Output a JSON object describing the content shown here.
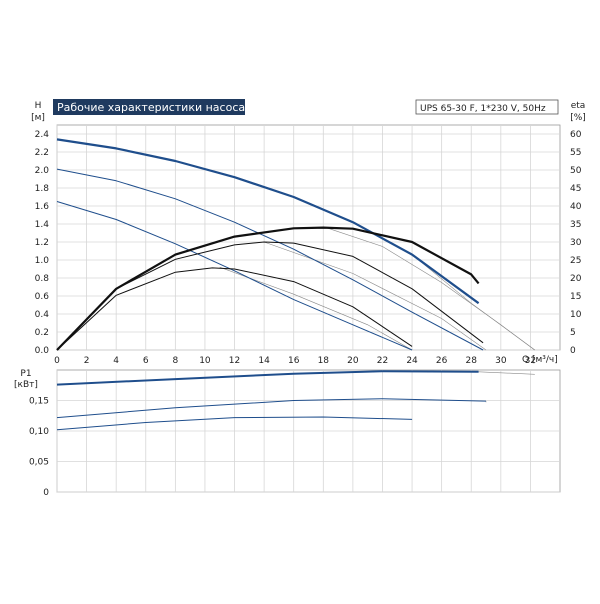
{
  "chart_data": [
    {
      "type": "line",
      "title": "Рабочие характеристики насоса",
      "model_label": "UPS 65-30 F, 1*230 V, 50Hz",
      "ylabel": "H",
      "yunit": "[м]",
      "y2label": "eta",
      "y2unit": "[%]",
      "xlabel": "Q [м³/ч]",
      "xlim": [
        0,
        34
      ],
      "ylim": [
        0,
        2.5
      ],
      "y2lim": [
        0,
        62.5
      ],
      "xticks": [
        "0",
        "2",
        "4",
        "6",
        "8",
        "10",
        "12",
        "14",
        "16",
        "18",
        "20",
        "22",
        "24",
        "26",
        "28",
        "30",
        "32"
      ],
      "yticks": [
        "0.0",
        "0.2",
        "0.4",
        "0.6",
        "0.8",
        "1.0",
        "1.2",
        "1.4",
        "1.6",
        "1.8",
        "2.0",
        "2.2",
        "2.4"
      ],
      "y2ticks": [
        "0",
        "5",
        "10",
        "15",
        "20",
        "25",
        "30",
        "35",
        "40",
        "45",
        "50",
        "55",
        "60"
      ],
      "grid": true,
      "colors": {
        "head_curves": "#1f4e8c",
        "efficiency_curves": "#111111",
        "extension": "#8a8a8a"
      },
      "series": [
        {
          "kind": "head",
          "speed": 3,
          "axis": "left",
          "bold": true,
          "x": [
            0,
            4,
            8,
            12,
            16,
            20,
            24,
            28.5
          ],
          "y": [
            2.34,
            2.24,
            2.1,
            1.92,
            1.7,
            1.42,
            1.06,
            0.52
          ]
        },
        {
          "kind": "head",
          "speed": 2,
          "axis": "left",
          "bold": false,
          "x": [
            0,
            4,
            8,
            12,
            16,
            20,
            24,
            28.8
          ],
          "y": [
            2.01,
            1.88,
            1.68,
            1.42,
            1.12,
            0.78,
            0.42,
            0.0
          ]
        },
        {
          "kind": "head",
          "speed": 1,
          "axis": "left",
          "bold": false,
          "x": [
            0,
            4,
            8,
            12,
            16,
            20,
            24
          ],
          "y": [
            1.65,
            1.45,
            1.18,
            0.88,
            0.56,
            0.28,
            0.0
          ]
        },
        {
          "kind": "eta",
          "speed": 3,
          "axis": "right",
          "bold": true,
          "x": [
            0,
            4,
            8,
            12,
            16,
            18,
            20,
            24,
            28,
            28.5
          ],
          "y": [
            0,
            17,
            26.5,
            31.5,
            33.8,
            34,
            33.7,
            30,
            21,
            18.5
          ]
        },
        {
          "kind": "eta",
          "speed": 2,
          "axis": "right",
          "bold": false,
          "x": [
            0,
            4,
            8,
            12,
            14,
            16,
            20,
            24,
            28.8
          ],
          "y": [
            0,
            17,
            25.2,
            29.2,
            30,
            29.7,
            26,
            17,
            2
          ]
        },
        {
          "kind": "eta",
          "speed": 1,
          "axis": "right",
          "bold": false,
          "x": [
            0,
            4,
            8,
            10.5,
            12,
            16,
            20,
            24
          ],
          "y": [
            0,
            15.2,
            21.6,
            22.8,
            22.5,
            19,
            12,
            1
          ]
        }
      ],
      "extensions": [
        {
          "x": [
            16,
            20,
            24,
            28,
            32.3
          ],
          "y": [
            1.7,
            1.42,
            1.06,
            0.52,
            0.0
          ]
        },
        {
          "x": [
            18,
            22,
            26,
            30,
            32.3
          ],
          "y": [
            1.37,
            1.15,
            0.75,
            0.28,
            0.0
          ]
        },
        {
          "x": [
            14,
            20,
            26,
            29.0
          ],
          "y": [
            1.2,
            0.85,
            0.35,
            0.0
          ]
        },
        {
          "x": [
            11,
            16,
            21,
            24.0
          ],
          "y": [
            0.92,
            0.62,
            0.28,
            0.0
          ]
        }
      ]
    },
    {
      "type": "line",
      "ylabel": "P1",
      "yunit": "[кВт]",
      "xlim": [
        0,
        34
      ],
      "ylim": [
        0,
        0.2
      ],
      "yticks": [
        "0",
        "0,05",
        "0,10",
        "0,15"
      ],
      "grid": true,
      "colors": {
        "power_curves": "#1f4e8c",
        "extension": "#8a8a8a"
      },
      "series": [
        {
          "kind": "power",
          "speed": 3,
          "bold": true,
          "x": [
            0,
            8,
            16,
            22,
            28.5
          ],
          "y": [
            0.176,
            0.185,
            0.194,
            0.198,
            0.197
          ]
        },
        {
          "kind": "power",
          "speed": 2,
          "bold": false,
          "x": [
            0,
            8,
            16,
            22,
            29
          ],
          "y": [
            0.122,
            0.138,
            0.15,
            0.153,
            0.149
          ]
        },
        {
          "kind": "power",
          "speed": 1,
          "bold": false,
          "x": [
            0,
            6,
            12,
            18,
            24
          ],
          "y": [
            0.102,
            0.114,
            0.122,
            0.123,
            0.119
          ]
        }
      ],
      "extensions": [
        {
          "x": [
            28.5,
            32.3
          ],
          "y": [
            0.197,
            0.193
          ]
        },
        {
          "x": [
            29,
            29.0
          ],
          "y": [
            0.149,
            0.147
          ]
        }
      ]
    }
  ]
}
